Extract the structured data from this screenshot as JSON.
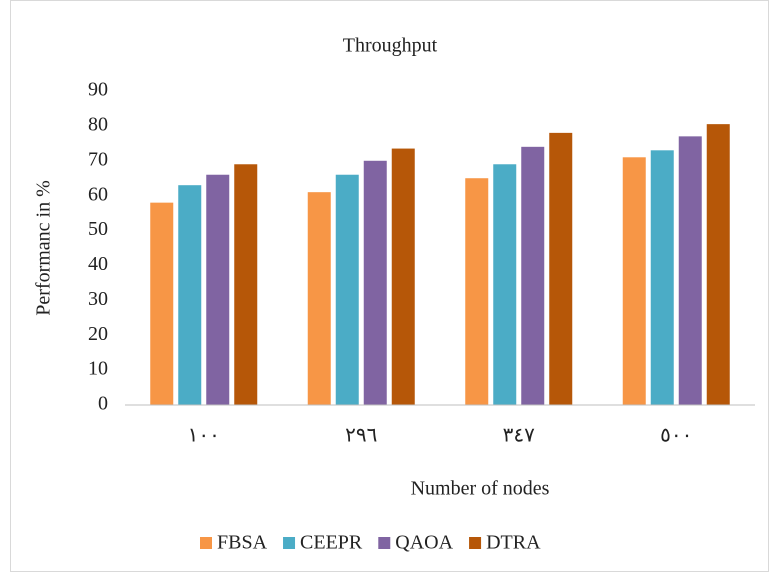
{
  "chart_data": {
    "type": "bar",
    "title": "Throughput",
    "xlabel": "Number of nodes",
    "ylabel": "Performanc in %",
    "categories": [
      "١٠٠",
      "٢٩٦",
      "٣٤٧",
      "٥٠٠"
    ],
    "series": [
      {
        "name": "FBSA",
        "color": "#f79646",
        "values": [
          58,
          61,
          65,
          71
        ]
      },
      {
        "name": "CEEPR",
        "color": "#4bacc6",
        "values": [
          63,
          66,
          69,
          73
        ]
      },
      {
        "name": "QAOA",
        "color": "#8064a2",
        "values": [
          66,
          70,
          74,
          77
        ]
      },
      {
        "name": "DTRA",
        "color": "#b65708",
        "values": [
          69,
          73.5,
          78,
          80.5
        ]
      }
    ],
    "ylim": [
      0,
      90
    ],
    "yticks": [
      0,
      10,
      20,
      30,
      40,
      50,
      60,
      70,
      80,
      90
    ],
    "grid": false,
    "legend": "bottom"
  }
}
